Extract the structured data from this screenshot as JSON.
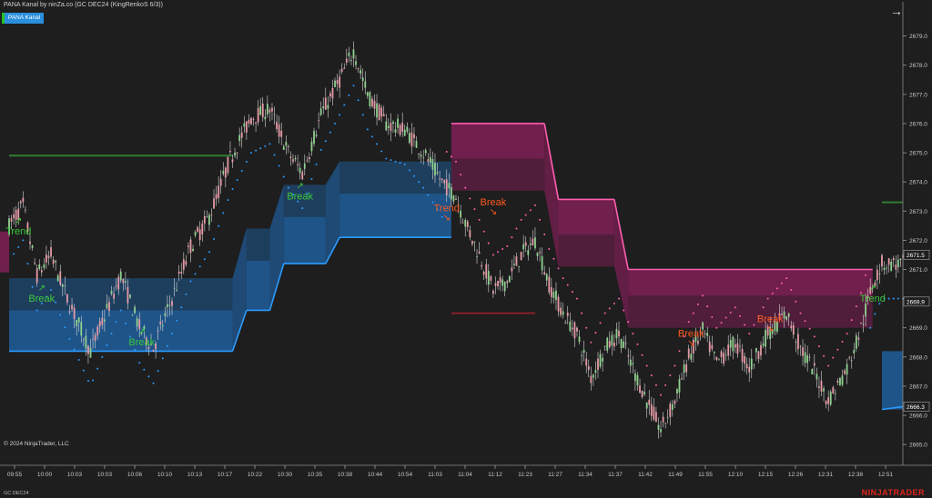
{
  "header": {
    "title": "PANA Kanal by ninZa.co (GC DEC24 (KingRenkoS 6/3))",
    "indicator_button": "PANA Kanal",
    "copyright": "© 2024 NinjaTrader, LLC",
    "symbol_label": "GC DEC24",
    "brand": "NINJATRADER"
  },
  "colors": {
    "background": "#1e1e1e",
    "up_candle": "#8fd08f",
    "down_candle": "#e59aa6",
    "bull_channel": "#1f5a93",
    "bull_edge": "#2b9cff",
    "bear_channel": "#7a1f52",
    "bear_edge": "#ff5fb0",
    "bull_signal": "#3cc83c",
    "bear_signal": "#ff5a1e",
    "price_tag_bg": "#1e1e1e"
  },
  "chart_data": {
    "type": "candlestick",
    "title": "",
    "ylim": [
      2664.6,
      2679.3
    ],
    "yticks": [
      2665.0,
      2666.0,
      2667.0,
      2668.0,
      2669.0,
      2670.0,
      2671.0,
      2672.0,
      2673.0,
      2674.0,
      2675.0,
      2676.0,
      2677.0,
      2678.0,
      2679.0
    ],
    "ytick_labels": [
      "2665.0",
      "2666.0",
      "2667.0",
      "2668.0",
      "2669.0",
      "2670.0",
      "2671.0",
      "2672.0",
      "2673.0",
      "2674.0",
      "2675.0",
      "2676.0",
      "2677.0",
      "2678.0",
      "2679.0"
    ],
    "xtick_labels": [
      "09:55",
      "10:00",
      "10:03",
      "10:03",
      "10:06",
      "10:10",
      "10:13",
      "10:17",
      "10:22",
      "10:30",
      "10:35",
      "10:38",
      "10:44",
      "10:54",
      "11:03",
      "11:04",
      "11:12",
      "11:23",
      "11:27",
      "11:34",
      "11:37",
      "11:42",
      "11:49",
      "11:55",
      "12:10",
      "12:15",
      "12:26",
      "12:31",
      "12:38",
      "12:51"
    ],
    "price_tags": [
      {
        "value": 2671.5,
        "label": "2671.5"
      },
      {
        "value": 2669.9,
        "label": "2669.9"
      },
      {
        "value": 2666.3,
        "label": "2666.3"
      }
    ],
    "price_path": [
      [
        0,
        2672.5
      ],
      [
        6,
        2673.2
      ],
      [
        12,
        2670.8
      ],
      [
        18,
        2671.5
      ],
      [
        25,
        2670.0
      ],
      [
        35,
        2668.2
      ],
      [
        43,
        2669.8
      ],
      [
        48,
        2670.8
      ],
      [
        56,
        2669.0
      ],
      [
        62,
        2668.3
      ],
      [
        70,
        2670.0
      ],
      [
        78,
        2671.8
      ],
      [
        86,
        2672.8
      ],
      [
        95,
        2674.8
      ],
      [
        104,
        2676.2
      ],
      [
        112,
        2676.5
      ],
      [
        120,
        2675.0
      ],
      [
        126,
        2674.3
      ],
      [
        134,
        2676.3
      ],
      [
        142,
        2677.5
      ],
      [
        148,
        2678.5
      ],
      [
        154,
        2677.0
      ],
      [
        162,
        2676.0
      ],
      [
        170,
        2675.8
      ],
      [
        178,
        2675.0
      ],
      [
        186,
        2674.0
      ],
      [
        192,
        2673.5
      ],
      [
        196,
        2672.6
      ],
      [
        202,
        2671.5
      ],
      [
        208,
        2670.3
      ],
      [
        214,
        2670.6
      ],
      [
        220,
        2671.5
      ],
      [
        226,
        2672.0
      ],
      [
        232,
        2670.5
      ],
      [
        238,
        2669.5
      ],
      [
        244,
        2668.8
      ],
      [
        250,
        2667.3
      ],
      [
        256,
        2668.3
      ],
      [
        262,
        2668.8
      ],
      [
        268,
        2667.6
      ],
      [
        274,
        2666.5
      ],
      [
        280,
        2665.5
      ],
      [
        286,
        2666.5
      ],
      [
        292,
        2668.0
      ],
      [
        298,
        2668.9
      ],
      [
        304,
        2667.8
      ],
      [
        312,
        2668.5
      ],
      [
        318,
        2667.6
      ],
      [
        326,
        2668.8
      ],
      [
        334,
        2669.5
      ],
      [
        340,
        2668.3
      ],
      [
        346,
        2667.5
      ],
      [
        352,
        2666.5
      ],
      [
        360,
        2667.6
      ],
      [
        366,
        2669.0
      ],
      [
        371,
        2670.5
      ],
      [
        375,
        2671.2
      ]
    ],
    "bull_channel_steps": [
      {
        "from": 0,
        "to": 96,
        "mid": 2669.6,
        "low": 2668.2
      },
      {
        "from": 102,
        "to": 112,
        "mid": 2671.3,
        "low": 2669.6
      },
      {
        "from": 118,
        "to": 136,
        "mid": 2672.8,
        "low": 2671.2
      },
      {
        "from": 142,
        "to": 190,
        "mid": 2673.6,
        "low": 2672.1
      }
    ],
    "bear_channel_steps": [
      {
        "from": 190,
        "to": 230,
        "mid": 2674.8,
        "high": 2676.0
      },
      {
        "from": 236,
        "to": 260,
        "mid": 2672.2,
        "high": 2673.4
      },
      {
        "from": 266,
        "to": 371,
        "mid": 2670.1,
        "high": 2671.0
      }
    ],
    "levels": [
      {
        "name": "long-level",
        "y": 2674.9,
        "from": 0,
        "to": 96
      },
      {
        "name": "short-level",
        "y": 2669.5,
        "from": 190,
        "to": 226
      },
      {
        "name": "long-level-right",
        "y": 2673.3,
        "from": 375,
        "to": 384
      }
    ],
    "signals": [
      {
        "label": "Trend",
        "x": 4,
        "y": 2672.2,
        "kind": "bull"
      },
      {
        "label": "Break",
        "x": 14,
        "y": 2669.9,
        "kind": "bull"
      },
      {
        "label": "Break",
        "x": 57,
        "y": 2668.4,
        "kind": "bull"
      },
      {
        "label": "Break",
        "x": 125,
        "y": 2673.4,
        "kind": "bull"
      },
      {
        "label": "Trend",
        "x": 188,
        "y": 2673.0,
        "kind": "bear"
      },
      {
        "label": "Break",
        "x": 208,
        "y": 2673.2,
        "kind": "bear"
      },
      {
        "label": "Break",
        "x": 293,
        "y": 2668.7,
        "kind": "bear"
      },
      {
        "label": "Break",
        "x": 327,
        "y": 2669.2,
        "kind": "bear"
      },
      {
        "label": "Trend",
        "x": 371,
        "y": 2669.9,
        "kind": "bull"
      }
    ]
  }
}
